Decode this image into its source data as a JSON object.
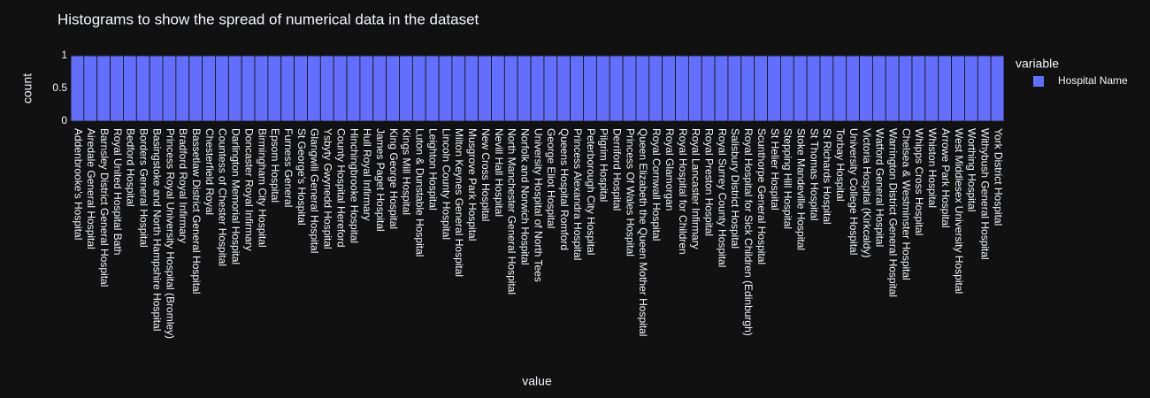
{
  "chart_data": {
    "type": "histogram",
    "title": "Histograms to show the spread of numerical data in the dataset",
    "xlabel": "value",
    "ylabel": "count",
    "legend_title": "variable",
    "legend_position": "right",
    "series": [
      {
        "name": "Hospital Name",
        "color": "#636efa",
        "values": [
          1,
          1,
          1,
          1,
          1,
          1,
          1,
          1,
          1,
          1,
          1,
          1,
          1,
          1,
          1,
          1,
          1,
          1,
          1,
          1,
          1,
          1,
          1,
          1,
          1,
          1,
          1,
          1,
          1,
          1,
          1,
          1,
          1,
          1,
          1,
          1,
          1,
          1,
          1,
          1,
          1,
          1,
          1,
          1,
          1,
          1,
          1,
          1,
          1,
          1,
          1,
          1,
          1,
          1,
          1,
          1,
          1,
          1,
          1,
          1,
          1,
          1,
          1,
          1,
          1,
          1,
          1,
          1,
          1,
          1,
          1
        ]
      }
    ],
    "categories": [
      "Addenbrooke's Hospital",
      "Airedale General Hospital",
      "Barnsley District General Hospital",
      "Royal United Hospital Bath",
      "Bedford Hospital",
      "Borders General Hospital",
      "Basingstoke and North Hampshire Hospital",
      "Princess Royal University Hospital (Bromley)",
      "Bradford Royal Infirmary",
      "Bassetlaw District General Hospital",
      "Chesterfield Royal",
      "Countess of Chester Hospital",
      "Darlington Memorial Hospital",
      "Doncaster Royal Infirmary",
      "Birmingham City Hospital",
      "Epsom Hospital",
      "Furness General",
      "St George's Hospital",
      "Glangwili General Hospital",
      "Ysbyty Gwynedd Hospital",
      "County Hospital Hereford",
      "Hinchingbrooke Hospital",
      "Hull Royal Infirmary",
      "James Paget Hospital",
      "King George Hospital",
      "Kings Mill Hospital",
      "Luton & Dunstable Hospital",
      "Leighton Hospital",
      "Lincoln County Hospital",
      "Milton Keynes General Hospital",
      "Musgrove Park Hospital",
      "New Cross Hospital",
      "Nevill Hall Hospital",
      "North Manchester General Hospital",
      "Norfolk and Norwich Hospital",
      "University Hospital of North Tees",
      "George Eliot Hospital",
      "Queens Hospital Romford",
      "Princess Alexandra Hospital",
      "Peterborough City Hospital",
      "Pilgrim Hospital",
      "Derriford Hospital",
      "Princess Of Wales Hospital",
      "Queen Elizabeth the Queen Mother Hospital",
      "Royal Cornwall Hospital",
      "Royal Glamorgan",
      "Royal Hospital for Children",
      "Royal Lancaster Infirmary",
      "Royal Preston Hospital",
      "Royal Surrey County Hospital",
      "Salisbury District Hospital",
      "Royal Hospital for Sick Children (Edinburgh)",
      "Scunthorpe General Hospital",
      "St Helier Hospital",
      "Stepping Hill Hospital",
      "Stoke Mandeville Hospital",
      "St Thomas Hospital",
      "St Richards Hospital",
      "Torbay Hospital",
      "University College Hospital",
      "Victoria Hospital (Kirkcaldy)",
      "Watford General Hospital",
      "Warrington District General Hospital",
      "Chelsea & Westminster Hospital",
      "Whipps Cross Hospital",
      "Whiston Hospital",
      "Arrowe Park Hospital",
      "West Middlesex University Hospital",
      "Worthing Hospital",
      "Withybush General Hospital",
      "York District Hospital"
    ],
    "ylim": [
      0,
      1
    ],
    "yticks": [
      0,
      0.5,
      1
    ],
    "grid": true
  }
}
